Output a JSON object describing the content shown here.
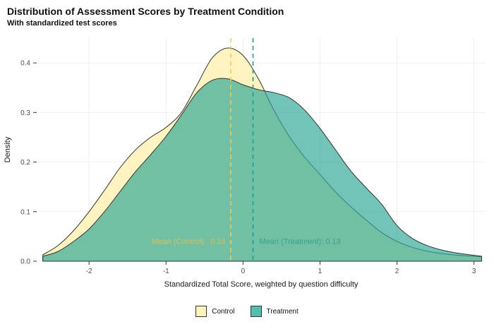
{
  "header": {
    "title": "Distribution of Assessment Scores by Treatment Condition",
    "subtitle": "With standardized test scores"
  },
  "chart_data": {
    "type": "area",
    "title": "Distribution of Assessment Scores by Treatment Condition",
    "subtitle": "With standardized test scores",
    "xlabel": "Standardized Total Score, weighted by question difficulty",
    "ylabel": "Density",
    "xlim": [
      -2.68,
      3.15
    ],
    "ylim": [
      0,
      0.45
    ],
    "x_ticks": [
      -2,
      -1,
      0,
      1,
      2,
      3
    ],
    "y_ticks": [
      0.0,
      0.1,
      0.2,
      0.3,
      0.4
    ],
    "grid": true,
    "legend_position": "bottom",
    "x": [
      -2.6,
      -2.4,
      -2.2,
      -2.0,
      -1.8,
      -1.6,
      -1.4,
      -1.2,
      -1.0,
      -0.8,
      -0.6,
      -0.4,
      -0.2,
      0.0,
      0.2,
      0.4,
      0.6,
      0.8,
      1.0,
      1.2,
      1.4,
      1.6,
      1.8,
      2.0,
      2.2,
      2.4,
      2.6,
      2.8,
      3.0,
      3.1
    ],
    "series": [
      {
        "name": "Control",
        "values": [
          0.013,
          0.032,
          0.062,
          0.1,
          0.143,
          0.188,
          0.224,
          0.25,
          0.27,
          0.3,
          0.355,
          0.41,
          0.43,
          0.415,
          0.368,
          0.305,
          0.252,
          0.21,
          0.175,
          0.14,
          0.11,
          0.083,
          0.058,
          0.04,
          0.028,
          0.02,
          0.015,
          0.012,
          0.01,
          0.009
        ],
        "mean": -0.16,
        "annotation": "Mean (Control): -0.16"
      },
      {
        "name": "Treatment",
        "values": [
          0.01,
          0.02,
          0.04,
          0.065,
          0.1,
          0.14,
          0.18,
          0.215,
          0.252,
          0.295,
          0.34,
          0.365,
          0.368,
          0.356,
          0.346,
          0.34,
          0.33,
          0.305,
          0.268,
          0.225,
          0.182,
          0.148,
          0.115,
          0.072,
          0.046,
          0.031,
          0.022,
          0.016,
          0.012,
          0.01
        ],
        "mean": 0.13,
        "annotation": "Mean (Treatment): 0.13"
      }
    ],
    "colors": {
      "control_fill": "#FFF3BC",
      "control_opacity": 0.95,
      "treatment_fill": "#2FA796",
      "treatment_opacity": 0.68,
      "outline": "#333333",
      "control_mean_line": "#EBCB5A",
      "treatment_mean_line": "#17A191",
      "control_annotation": "#DDBE55",
      "treatment_annotation": "#35A090",
      "tick_text": "#4d4d4d",
      "axis_text": "#1a1a1a",
      "grid_line": "#efefef",
      "tick_mark": "#333333"
    }
  }
}
